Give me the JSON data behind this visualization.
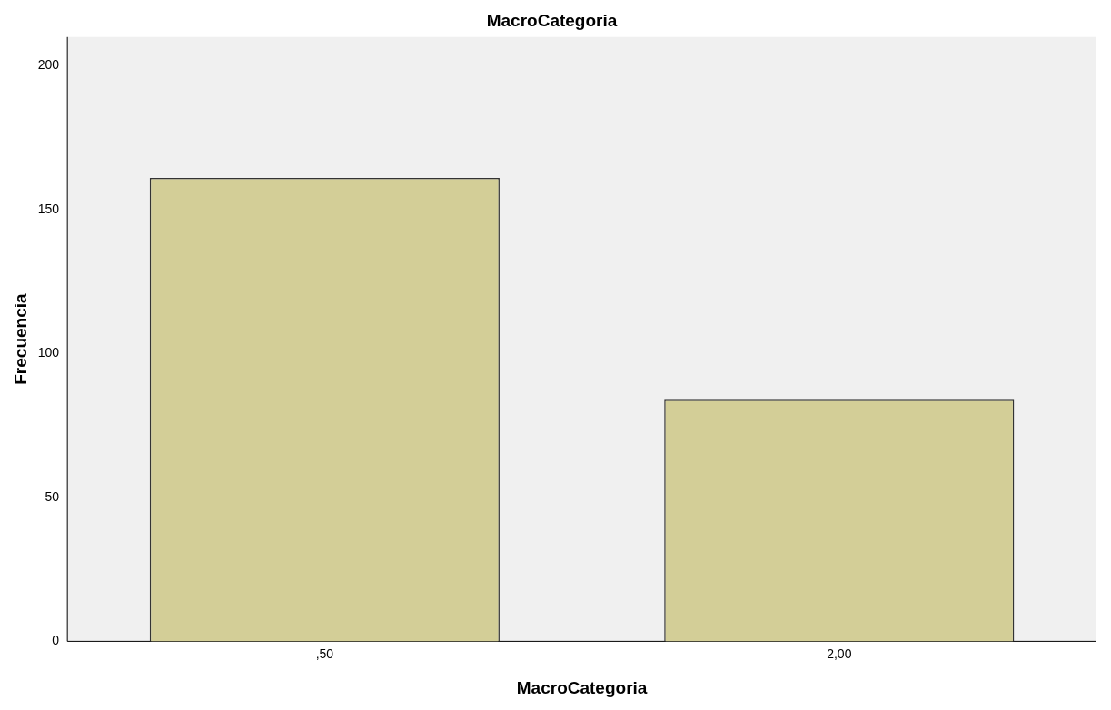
{
  "chart_data": {
    "type": "bar",
    "title": "MacroCategoria",
    "xlabel": "MacroCategoria",
    "ylabel": "Frecuencia",
    "categories": [
      ",50",
      "2,00"
    ],
    "values": [
      161,
      84
    ],
    "color": "#d3ce97",
    "ylim": [
      0,
      210
    ],
    "yticks": [
      0,
      50,
      100,
      150,
      200
    ],
    "grid": false,
    "legend": false
  }
}
